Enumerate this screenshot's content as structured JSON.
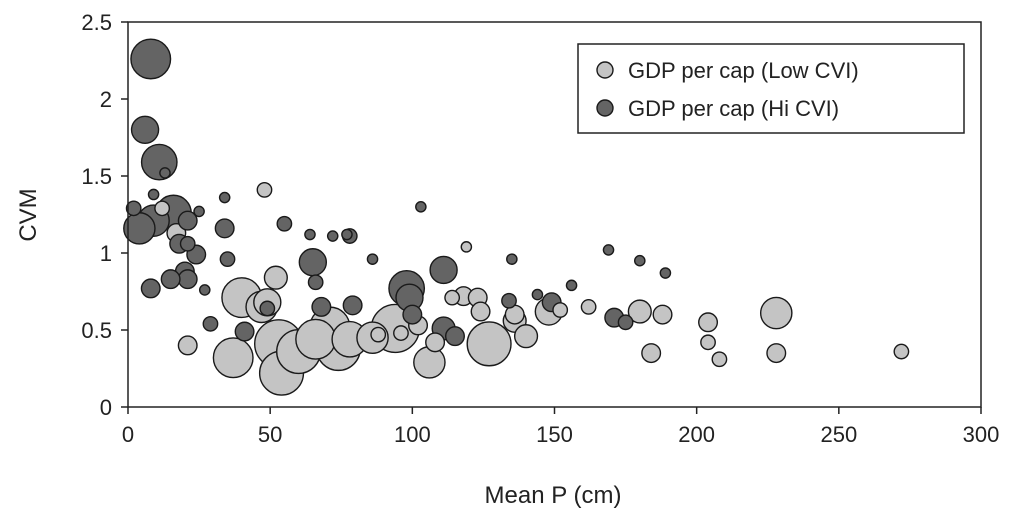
{
  "chart_data": {
    "type": "scatter",
    "bubble": true,
    "xlabel": "Mean P (cm)",
    "ylabel": "CVM",
    "xlim": [
      0,
      300
    ],
    "ylim": [
      0,
      2.5
    ],
    "xticks": [
      "0",
      "50",
      "100",
      "150",
      "200",
      "250",
      "300"
    ],
    "yticks": [
      "0",
      "0.5",
      "1",
      "1.5",
      "2",
      "2.5"
    ],
    "grid": false,
    "legend_position": "top-right",
    "series": [
      {
        "name": "GDP per cap (Low CVI)",
        "color": "#c4c4c4",
        "points": [
          {
            "x": 48,
            "y": 1.41,
            "s": 2
          },
          {
            "x": 52,
            "y": 0.84,
            "s": 4
          },
          {
            "x": 40,
            "y": 0.71,
            "s": 8
          },
          {
            "x": 47,
            "y": 0.65,
            "s": 6
          },
          {
            "x": 49,
            "y": 0.68,
            "s": 5
          },
          {
            "x": 37,
            "y": 0.32,
            "s": 8
          },
          {
            "x": 54,
            "y": 0.22,
            "s": 9
          },
          {
            "x": 60,
            "y": 0.36,
            "s": 9
          },
          {
            "x": 53,
            "y": 0.41,
            "s": 10
          },
          {
            "x": 71,
            "y": 0.52,
            "s": 8
          },
          {
            "x": 74,
            "y": 0.38,
            "s": 9
          },
          {
            "x": 66,
            "y": 0.44,
            "s": 8
          },
          {
            "x": 78,
            "y": 0.44,
            "s": 7
          },
          {
            "x": 86,
            "y": 0.45,
            "s": 6
          },
          {
            "x": 94,
            "y": 0.51,
            "s": 10
          },
          {
            "x": 106,
            "y": 0.29,
            "s": 6
          },
          {
            "x": 127,
            "y": 0.41,
            "s": 9
          },
          {
            "x": 119,
            "y": 1.04,
            "s": 1
          },
          {
            "x": 114,
            "y": 0.71,
            "s": 2
          },
          {
            "x": 118,
            "y": 0.72,
            "s": 3
          },
          {
            "x": 123,
            "y": 0.71,
            "s": 3
          },
          {
            "x": 124,
            "y": 0.62,
            "s": 3
          },
          {
            "x": 136,
            "y": 0.56,
            "s": 4
          },
          {
            "x": 140,
            "y": 0.46,
            "s": 4
          },
          {
            "x": 148,
            "y": 0.62,
            "s": 5
          },
          {
            "x": 152,
            "y": 0.63,
            "s": 2
          },
          {
            "x": 162,
            "y": 0.65,
            "s": 2
          },
          {
            "x": 180,
            "y": 0.62,
            "s": 4
          },
          {
            "x": 188,
            "y": 0.6,
            "s": 3
          },
          {
            "x": 184,
            "y": 0.35,
            "s": 3
          },
          {
            "x": 204,
            "y": 0.55,
            "s": 3
          },
          {
            "x": 204,
            "y": 0.42,
            "s": 2
          },
          {
            "x": 208,
            "y": 0.31,
            "s": 2
          },
          {
            "x": 228,
            "y": 0.61,
            "s": 6
          },
          {
            "x": 228,
            "y": 0.35,
            "s": 3
          },
          {
            "x": 272,
            "y": 0.36,
            "s": 2
          },
          {
            "x": 21,
            "y": 0.4,
            "s": 3
          },
          {
            "x": 17,
            "y": 1.13,
            "s": 3
          },
          {
            "x": 12,
            "y": 1.29,
            "s": 2
          },
          {
            "x": 102,
            "y": 0.53,
            "s": 3
          },
          {
            "x": 108,
            "y": 0.42,
            "s": 3
          },
          {
            "x": 136,
            "y": 0.6,
            "s": 3
          },
          {
            "x": 96,
            "y": 0.48,
            "s": 2
          },
          {
            "x": 88,
            "y": 0.47,
            "s": 2
          }
        ]
      },
      {
        "name": "GDP per cap (Hi CVI)",
        "color": "#646464",
        "points": [
          {
            "x": 8,
            "y": 2.26,
            "s": 8
          },
          {
            "x": 6,
            "y": 1.8,
            "s": 5
          },
          {
            "x": 11,
            "y": 1.59,
            "s": 7
          },
          {
            "x": 16,
            "y": 1.26,
            "s": 7
          },
          {
            "x": 9,
            "y": 1.21,
            "s": 6
          },
          {
            "x": 4,
            "y": 1.16,
            "s": 6
          },
          {
            "x": 2,
            "y": 1.29,
            "s": 2
          },
          {
            "x": 9,
            "y": 1.38,
            "s": 1
          },
          {
            "x": 13,
            "y": 1.52,
            "s": 1
          },
          {
            "x": 21,
            "y": 1.21,
            "s": 3
          },
          {
            "x": 18,
            "y": 1.06,
            "s": 3
          },
          {
            "x": 21,
            "y": 1.06,
            "s": 2
          },
          {
            "x": 24,
            "y": 0.99,
            "s": 3
          },
          {
            "x": 20,
            "y": 0.88,
            "s": 3
          },
          {
            "x": 21,
            "y": 0.83,
            "s": 3
          },
          {
            "x": 15,
            "y": 0.83,
            "s": 3
          },
          {
            "x": 8,
            "y": 0.77,
            "s": 3
          },
          {
            "x": 34,
            "y": 1.16,
            "s": 3
          },
          {
            "x": 35,
            "y": 0.96,
            "s": 2
          },
          {
            "x": 34,
            "y": 1.36,
            "s": 1
          },
          {
            "x": 25,
            "y": 1.27,
            "s": 1
          },
          {
            "x": 27,
            "y": 0.76,
            "s": 1
          },
          {
            "x": 29,
            "y": 0.54,
            "s": 2
          },
          {
            "x": 41,
            "y": 0.49,
            "s": 3
          },
          {
            "x": 55,
            "y": 1.19,
            "s": 2
          },
          {
            "x": 64,
            "y": 1.12,
            "s": 1
          },
          {
            "x": 65,
            "y": 0.94,
            "s": 5
          },
          {
            "x": 77,
            "y": 1.12,
            "s": 1
          },
          {
            "x": 72,
            "y": 1.11,
            "s": 1
          },
          {
            "x": 78,
            "y": 1.11,
            "s": 2
          },
          {
            "x": 68,
            "y": 0.65,
            "s": 3
          },
          {
            "x": 79,
            "y": 0.66,
            "s": 3
          },
          {
            "x": 86,
            "y": 0.96,
            "s": 1
          },
          {
            "x": 98,
            "y": 0.77,
            "s": 7
          },
          {
            "x": 99,
            "y": 0.71,
            "s": 5
          },
          {
            "x": 100,
            "y": 0.6,
            "s": 3
          },
          {
            "x": 103,
            "y": 1.3,
            "s": 1
          },
          {
            "x": 111,
            "y": 0.89,
            "s": 5
          },
          {
            "x": 111,
            "y": 0.51,
            "s": 4
          },
          {
            "x": 115,
            "y": 0.46,
            "s": 3
          },
          {
            "x": 134,
            "y": 0.69,
            "s": 2
          },
          {
            "x": 135,
            "y": 0.96,
            "s": 1
          },
          {
            "x": 144,
            "y": 0.73,
            "s": 1
          },
          {
            "x": 149,
            "y": 0.68,
            "s": 3
          },
          {
            "x": 156,
            "y": 0.79,
            "s": 1
          },
          {
            "x": 169,
            "y": 1.02,
            "s": 1
          },
          {
            "x": 171,
            "y": 0.58,
            "s": 3
          },
          {
            "x": 175,
            "y": 0.55,
            "s": 2
          },
          {
            "x": 180,
            "y": 0.95,
            "s": 1
          },
          {
            "x": 189,
            "y": 0.87,
            "s": 1
          },
          {
            "x": 66,
            "y": 0.81,
            "s": 2
          },
          {
            "x": 49,
            "y": 0.64,
            "s": 2
          }
        ]
      }
    ]
  }
}
